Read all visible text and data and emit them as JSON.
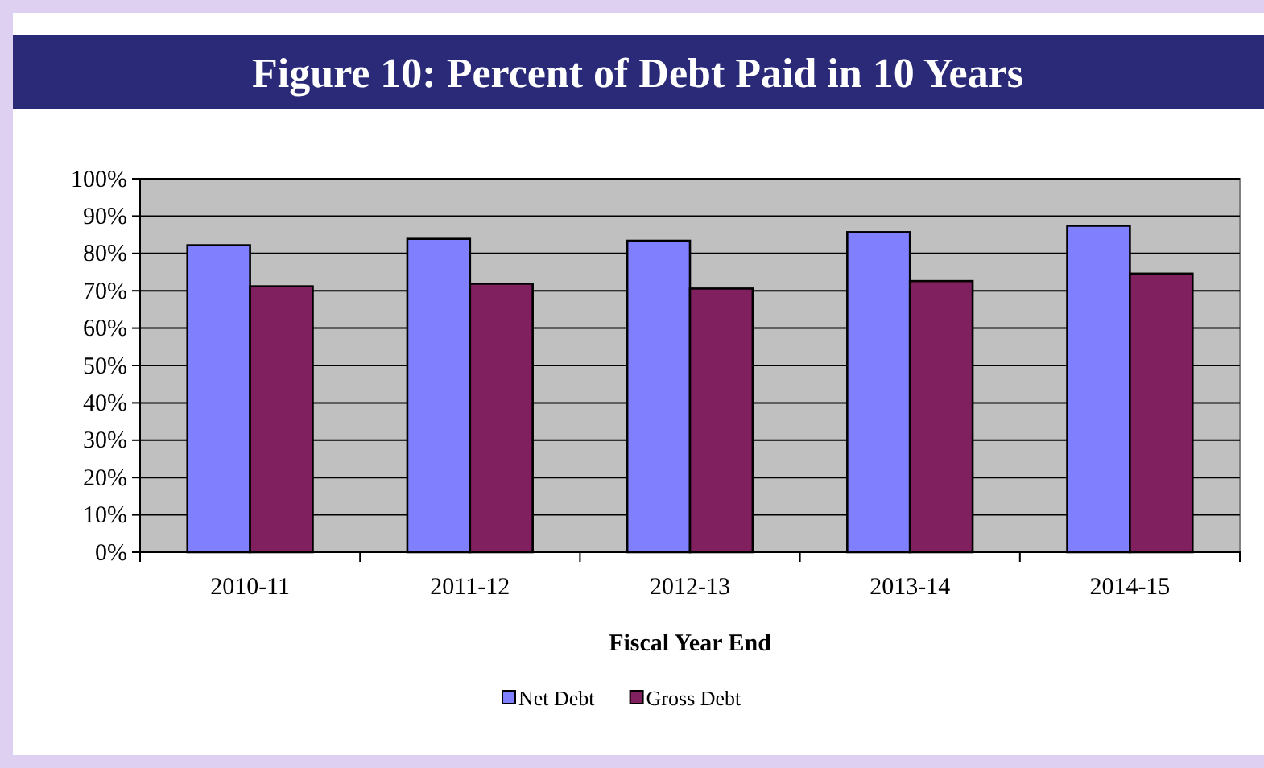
{
  "chart_data": {
    "type": "bar",
    "title": "Figure 10: Percent of Debt Paid in 10 Years",
    "xlabel": "Fiscal Year End",
    "categories": [
      "2010-11",
      "2011-12",
      "2012-13",
      "2013-14",
      "2014-15"
    ],
    "series": [
      {
        "name": "Net Debt",
        "color": "#8080ff",
        "values": [
          82.2,
          83.9,
          83.4,
          85.7,
          87.4
        ]
      },
      {
        "name": "Gross Debt",
        "color": "#80205e",
        "values": [
          71.2,
          71.9,
          70.6,
          72.6,
          74.6
        ]
      }
    ],
    "ylim": [
      0,
      100
    ],
    "yticks": [
      {
        "value": 0,
        "label": "0%"
      },
      {
        "value": 10,
        "label": "10%"
      },
      {
        "value": 20,
        "label": "20%"
      },
      {
        "value": 30,
        "label": "30%"
      },
      {
        "value": 40,
        "label": "40%"
      },
      {
        "value": 50,
        "label": "50%"
      },
      {
        "value": 60,
        "label": "60%"
      },
      {
        "value": 70,
        "label": "70%"
      },
      {
        "value": 80,
        "label": "80%"
      },
      {
        "value": 90,
        "label": "90%"
      },
      {
        "value": 100,
        "label": "100%"
      }
    ],
    "grid": "y",
    "legend": "bottom"
  }
}
